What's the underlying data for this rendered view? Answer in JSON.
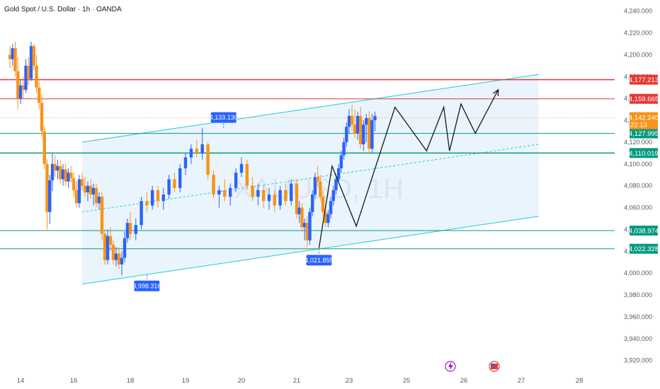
{
  "header": {
    "title": "Gold Spot / U.S. Dollar · 1h · OANDA",
    "watermark": "XAUUSD, 1H"
  },
  "colors": {
    "bull": "#2962ff",
    "bear": "#f7931a",
    "red_level": "#e53935",
    "green_level": "#089981",
    "channel": "#26c6da",
    "channel_fill": "#e3f0fb",
    "price_label": "#f7931a",
    "callout": "#2962ff"
  },
  "chart_data": {
    "type": "candlestick",
    "symbol": "XAUUSD",
    "timeframe": "1h",
    "y_range": [
      3912,
      4245
    ],
    "y_ticks": [
      "4,240.000",
      "4,220.000",
      "4,200.000",
      "4,180.000",
      "4,160.000",
      "4,140.000",
      "4,120.000",
      "4,100.000",
      "4,080.000",
      "4,060.000",
      "4,040.000",
      "4,020.000",
      "4,000.000",
      "3,980.000",
      "3,960.000",
      "3,940.000",
      "3,920.000"
    ],
    "x_ticks": [
      {
        "label": "14",
        "day": 14
      },
      {
        "label": "16",
        "day": 16
      },
      {
        "label": "18",
        "day": 18
      },
      {
        "label": "19",
        "day": 19
      },
      {
        "label": "20",
        "day": 20
      },
      {
        "label": "21",
        "day": 21
      },
      {
        "label": "23",
        "day": 23
      },
      {
        "label": "25",
        "day": 25
      },
      {
        "label": "26",
        "day": 26
      },
      {
        "label": "27",
        "day": 27
      },
      {
        "label": "28",
        "day": 28
      }
    ],
    "levels": [
      {
        "value": 4177.213,
        "label": "4,177.213",
        "kind": "red",
        "width": 1.5
      },
      {
        "value": 4159.665,
        "label": "4,159.665",
        "kind": "red",
        "width": 1
      },
      {
        "value": 4127.995,
        "label": "4,127.995",
        "kind": "green",
        "width": 1
      },
      {
        "value": 4110.019,
        "label": "4,110.019",
        "kind": "green",
        "width": 1.5
      },
      {
        "value": 4038.974,
        "label": "4,038.974",
        "kind": "green",
        "width": 1
      },
      {
        "value": 4022.328,
        "label": "4,022.328",
        "kind": "green",
        "width": 1
      }
    ],
    "current_price": {
      "value": 4142.24,
      "label": "4,142.240",
      "countdown": "22:13"
    },
    "callouts": [
      {
        "label": "4,133.130",
        "day": 19.68,
        "value": 4133.13,
        "side": "above"
      },
      {
        "label": "3,998.316",
        "day": 18.3,
        "value": 3998.316,
        "side": "below"
      },
      {
        "label": "4,021.855",
        "day": 21.85,
        "value": 4021.855,
        "side": "below"
      }
    ],
    "channel": {
      "start_day": 16.3,
      "end_day": 27.3,
      "upper": [
        4120,
        4182
      ],
      "middle": [
        4056,
        4118
      ],
      "lower": [
        3990,
        4052
      ]
    },
    "zigzag": [
      {
        "day": 21.85,
        "value": 4023
      },
      {
        "day": 22.35,
        "value": 4098
      },
      {
        "day": 23.25,
        "value": 4043
      },
      {
        "day": 24.6,
        "value": 4152
      },
      {
        "day": 25.35,
        "value": 4112
      },
      {
        "day": 25.65,
        "value": 4152
      },
      {
        "day": 25.75,
        "value": 4112
      },
      {
        "day": 25.95,
        "value": 4155
      },
      {
        "day": 26.2,
        "value": 4128
      },
      {
        "day": 26.6,
        "value": 4168
      }
    ],
    "candles": [
      {
        "d": 13.6,
        "o": 4200,
        "h": 4208,
        "l": 4188,
        "c": 4196
      },
      {
        "d": 13.7,
        "o": 4196,
        "h": 4210,
        "l": 4190,
        "c": 4206
      },
      {
        "d": 13.8,
        "o": 4206,
        "h": 4212,
        "l": 4180,
        "c": 4185
      },
      {
        "d": 13.9,
        "o": 4185,
        "h": 4198,
        "l": 4150,
        "c": 4160
      },
      {
        "d": 14.0,
        "o": 4160,
        "h": 4178,
        "l": 4155,
        "c": 4172
      },
      {
        "d": 14.1,
        "o": 4172,
        "h": 4180,
        "l": 4160,
        "c": 4168
      },
      {
        "d": 14.2,
        "o": 4168,
        "h": 4196,
        "l": 4165,
        "c": 4190
      },
      {
        "d": 14.3,
        "o": 4190,
        "h": 4198,
        "l": 4172,
        "c": 4178
      },
      {
        "d": 14.4,
        "o": 4178,
        "h": 4212,
        "l": 4176,
        "c": 4208
      },
      {
        "d": 14.5,
        "o": 4208,
        "h": 4210,
        "l": 4186,
        "c": 4190
      },
      {
        "d": 14.6,
        "o": 4190,
        "h": 4200,
        "l": 4165,
        "c": 4170
      },
      {
        "d": 14.7,
        "o": 4170,
        "h": 4176,
        "l": 4150,
        "c": 4156
      },
      {
        "d": 14.8,
        "o": 4156,
        "h": 4164,
        "l": 4125,
        "c": 4130
      },
      {
        "d": 14.9,
        "o": 4130,
        "h": 4135,
        "l": 4095,
        "c": 4100
      },
      {
        "d": 15.0,
        "o": 4100,
        "h": 4104,
        "l": 4040,
        "c": 4056
      },
      {
        "d": 15.1,
        "o": 4056,
        "h": 4090,
        "l": 4045,
        "c": 4085
      },
      {
        "d": 15.2,
        "o": 4085,
        "h": 4110,
        "l": 4075,
        "c": 4100
      },
      {
        "d": 15.3,
        "o": 4100,
        "h": 4108,
        "l": 4088,
        "c": 4094
      },
      {
        "d": 15.4,
        "o": 4094,
        "h": 4104,
        "l": 4086,
        "c": 4098
      },
      {
        "d": 15.5,
        "o": 4098,
        "h": 4103,
        "l": 4082,
        "c": 4086
      },
      {
        "d": 15.6,
        "o": 4086,
        "h": 4100,
        "l": 4080,
        "c": 4095
      },
      {
        "d": 15.7,
        "o": 4095,
        "h": 4100,
        "l": 4080,
        "c": 4084
      },
      {
        "d": 15.8,
        "o": 4084,
        "h": 4096,
        "l": 4078,
        "c": 4092
      },
      {
        "d": 15.9,
        "o": 4092,
        "h": 4098,
        "l": 4083,
        "c": 4087
      },
      {
        "d": 16.0,
        "o": 4087,
        "h": 4092,
        "l": 4070,
        "c": 4076
      },
      {
        "d": 16.1,
        "o": 4076,
        "h": 4084,
        "l": 4060,
        "c": 4064
      },
      {
        "d": 16.2,
        "o": 4064,
        "h": 4090,
        "l": 4060,
        "c": 4086
      },
      {
        "d": 16.3,
        "o": 4086,
        "h": 4092,
        "l": 4076,
        "c": 4080
      },
      {
        "d": 16.4,
        "o": 4080,
        "h": 4088,
        "l": 4070,
        "c": 4074
      },
      {
        "d": 16.5,
        "o": 4074,
        "h": 4084,
        "l": 4066,
        "c": 4080
      },
      {
        "d": 16.6,
        "o": 4080,
        "h": 4086,
        "l": 4068,
        "c": 4072
      },
      {
        "d": 16.7,
        "o": 4072,
        "h": 4082,
        "l": 4062,
        "c": 4078
      },
      {
        "d": 16.8,
        "o": 4078,
        "h": 4082,
        "l": 4060,
        "c": 4064
      },
      {
        "d": 16.9,
        "o": 4064,
        "h": 4074,
        "l": 4058,
        "c": 4070
      },
      {
        "d": 17.0,
        "o": 4070,
        "h": 4074,
        "l": 4030,
        "c": 4036
      },
      {
        "d": 17.1,
        "o": 4036,
        "h": 4040,
        "l": 4008,
        "c": 4012
      },
      {
        "d": 17.2,
        "o": 4012,
        "h": 4040,
        "l": 4008,
        "c": 4034
      },
      {
        "d": 17.3,
        "o": 4034,
        "h": 4042,
        "l": 4020,
        "c": 4026
      },
      {
        "d": 17.4,
        "o": 4026,
        "h": 4030,
        "l": 4008,
        "c": 4012
      },
      {
        "d": 17.5,
        "o": 4012,
        "h": 4024,
        "l": 4006,
        "c": 4018
      },
      {
        "d": 17.6,
        "o": 4018,
        "h": 4024,
        "l": 4004,
        "c": 4008
      },
      {
        "d": 17.7,
        "o": 4008,
        "h": 4020,
        "l": 3998,
        "c": 4014
      },
      {
        "d": 17.8,
        "o": 4014,
        "h": 4038,
        "l": 4010,
        "c": 4032
      },
      {
        "d": 17.9,
        "o": 4032,
        "h": 4050,
        "l": 4028,
        "c": 4046
      },
      {
        "d": 18.0,
        "o": 4046,
        "h": 4056,
        "l": 4030,
        "c": 4036
      },
      {
        "d": 18.1,
        "o": 4036,
        "h": 4050,
        "l": 4030,
        "c": 4044
      },
      {
        "d": 18.2,
        "o": 4044,
        "h": 4070,
        "l": 4040,
        "c": 4066
      },
      {
        "d": 18.3,
        "o": 4066,
        "h": 4074,
        "l": 4056,
        "c": 4062
      },
      {
        "d": 18.4,
        "o": 4062,
        "h": 4080,
        "l": 4058,
        "c": 4076
      },
      {
        "d": 18.5,
        "o": 4076,
        "h": 4080,
        "l": 4060,
        "c": 4066
      },
      {
        "d": 18.6,
        "o": 4066,
        "h": 4078,
        "l": 4058,
        "c": 4072
      },
      {
        "d": 18.7,
        "o": 4072,
        "h": 4090,
        "l": 4068,
        "c": 4086
      },
      {
        "d": 18.8,
        "o": 4086,
        "h": 4092,
        "l": 4074,
        "c": 4078
      },
      {
        "d": 18.9,
        "o": 4078,
        "h": 4100,
        "l": 4074,
        "c": 4096
      },
      {
        "d": 19.0,
        "o": 4096,
        "h": 4110,
        "l": 4090,
        "c": 4106
      },
      {
        "d": 19.1,
        "o": 4106,
        "h": 4118,
        "l": 4100,
        "c": 4114
      },
      {
        "d": 19.2,
        "o": 4114,
        "h": 4122,
        "l": 4106,
        "c": 4110
      },
      {
        "d": 19.3,
        "o": 4110,
        "h": 4133,
        "l": 4104,
        "c": 4118
      },
      {
        "d": 19.4,
        "o": 4118,
        "h": 4120,
        "l": 4086,
        "c": 4090
      },
      {
        "d": 19.5,
        "o": 4090,
        "h": 4094,
        "l": 4068,
        "c": 4072
      },
      {
        "d": 19.6,
        "o": 4072,
        "h": 4080,
        "l": 4060,
        "c": 4076
      },
      {
        "d": 19.7,
        "o": 4076,
        "h": 4086,
        "l": 4066,
        "c": 4070
      },
      {
        "d": 19.8,
        "o": 4070,
        "h": 4082,
        "l": 4062,
        "c": 4078
      },
      {
        "d": 19.9,
        "o": 4078,
        "h": 4096,
        "l": 4074,
        "c": 4092
      },
      {
        "d": 20.0,
        "o": 4092,
        "h": 4106,
        "l": 4088,
        "c": 4100
      },
      {
        "d": 20.1,
        "o": 4100,
        "h": 4104,
        "l": 4076,
        "c": 4080
      },
      {
        "d": 20.2,
        "o": 4080,
        "h": 4088,
        "l": 4066,
        "c": 4070
      },
      {
        "d": 20.3,
        "o": 4070,
        "h": 4082,
        "l": 4062,
        "c": 4076
      },
      {
        "d": 20.4,
        "o": 4076,
        "h": 4080,
        "l": 4060,
        "c": 4066
      },
      {
        "d": 20.5,
        "o": 4066,
        "h": 4078,
        "l": 4058,
        "c": 4072
      },
      {
        "d": 20.6,
        "o": 4072,
        "h": 4076,
        "l": 4056,
        "c": 4062
      },
      {
        "d": 20.7,
        "o": 4062,
        "h": 4080,
        "l": 4058,
        "c": 4076
      },
      {
        "d": 20.8,
        "o": 4076,
        "h": 4082,
        "l": 4062,
        "c": 4066
      },
      {
        "d": 20.9,
        "o": 4066,
        "h": 4086,
        "l": 4062,
        "c": 4082
      },
      {
        "d": 21.0,
        "o": 4082,
        "h": 4086,
        "l": 4050,
        "c": 4054
      },
      {
        "d": 21.1,
        "o": 4054,
        "h": 4066,
        "l": 4046,
        "c": 4060
      },
      {
        "d": 21.2,
        "o": 4060,
        "h": 4064,
        "l": 4038,
        "c": 4042
      },
      {
        "d": 21.3,
        "o": 4042,
        "h": 4050,
        "l": 4030,
        "c": 4046
      },
      {
        "d": 21.4,
        "o": 4046,
        "h": 4052,
        "l": 4024,
        "c": 4030
      },
      {
        "d": 21.5,
        "o": 4030,
        "h": 4060,
        "l": 4026,
        "c": 4056
      },
      {
        "d": 21.6,
        "o": 4056,
        "h": 4076,
        "l": 4052,
        "c": 4072
      },
      {
        "d": 21.7,
        "o": 4072,
        "h": 4092,
        "l": 4068,
        "c": 4088
      },
      {
        "d": 21.8,
        "o": 4088,
        "h": 4098,
        "l": 4080,
        "c": 4084
      },
      {
        "d": 21.9,
        "o": 4084,
        "h": 4090,
        "l": 4066,
        "c": 4070
      },
      {
        "d": 22.0,
        "o": 4070,
        "h": 4076,
        "l": 4052,
        "c": 4056
      },
      {
        "d": 22.1,
        "o": 4056,
        "h": 4062,
        "l": 4042,
        "c": 4046
      },
      {
        "d": 22.2,
        "o": 4046,
        "h": 4058,
        "l": 4042,
        "c": 4054
      },
      {
        "d": 22.3,
        "o": 4054,
        "h": 4070,
        "l": 4050,
        "c": 4066
      },
      {
        "d": 22.4,
        "o": 4066,
        "h": 4080,
        "l": 4062,
        "c": 4076
      },
      {
        "d": 22.5,
        "o": 4076,
        "h": 4090,
        "l": 4072,
        "c": 4086
      },
      {
        "d": 22.6,
        "o": 4086,
        "h": 4100,
        "l": 4082,
        "c": 4096
      },
      {
        "d": 22.7,
        "o": 4096,
        "h": 4112,
        "l": 4092,
        "c": 4108
      },
      {
        "d": 22.8,
        "o": 4108,
        "h": 4124,
        "l": 4104,
        "c": 4120
      },
      {
        "d": 22.9,
        "o": 4120,
        "h": 4138,
        "l": 4116,
        "c": 4134
      },
      {
        "d": 23.0,
        "o": 4134,
        "h": 4150,
        "l": 4128,
        "c": 4144
      },
      {
        "d": 23.1,
        "o": 4144,
        "h": 4154,
        "l": 4130,
        "c": 4136
      },
      {
        "d": 23.2,
        "o": 4136,
        "h": 4150,
        "l": 4124,
        "c": 4128
      },
      {
        "d": 23.3,
        "o": 4128,
        "h": 4148,
        "l": 4122,
        "c": 4144
      },
      {
        "d": 23.4,
        "o": 4144,
        "h": 4152,
        "l": 4114,
        "c": 4118
      },
      {
        "d": 23.5,
        "o": 4118,
        "h": 4140,
        "l": 4112,
        "c": 4136
      },
      {
        "d": 23.6,
        "o": 4136,
        "h": 4146,
        "l": 4120,
        "c": 4142
      },
      {
        "d": 23.7,
        "o": 4142,
        "h": 4148,
        "l": 4110,
        "c": 4114
      },
      {
        "d": 23.8,
        "o": 4114,
        "h": 4146,
        "l": 4110,
        "c": 4140
      },
      {
        "d": 23.9,
        "o": 4140,
        "h": 4148,
        "l": 4130,
        "c": 4144
      }
    ]
  }
}
